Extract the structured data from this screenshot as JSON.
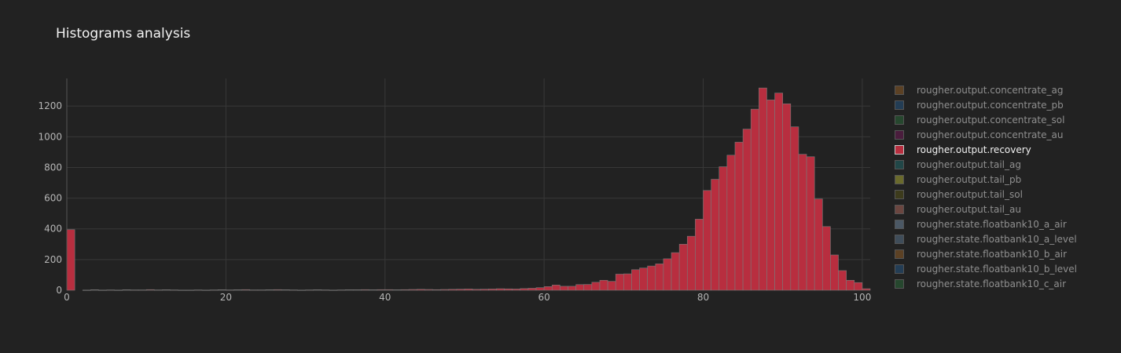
{
  "title": "Histograms analysis",
  "chart_data": {
    "type": "bar",
    "title": "Histograms analysis",
    "xlabel": "",
    "ylabel": "",
    "xlim": [
      0,
      101
    ],
    "ylim": [
      0,
      1380
    ],
    "x_ticks": [
      "0",
      "20",
      "40",
      "60",
      "80",
      "100"
    ],
    "y_ticks": [
      "0",
      "200",
      "400",
      "600",
      "800",
      "1000",
      "1200"
    ],
    "grid": true,
    "legend_position": "right",
    "bin_width": 1,
    "series": [
      {
        "name": "rougher.output.recovery",
        "color": "#b82e3f",
        "x": [
          0,
          1,
          2,
          3,
          4,
          5,
          6,
          7,
          8,
          9,
          10,
          11,
          12,
          13,
          14,
          15,
          16,
          17,
          18,
          19,
          20,
          21,
          22,
          23,
          24,
          25,
          26,
          27,
          28,
          29,
          30,
          31,
          32,
          33,
          34,
          35,
          36,
          37,
          38,
          39,
          40,
          41,
          42,
          43,
          44,
          45,
          46,
          47,
          48,
          49,
          50,
          51,
          52,
          53,
          54,
          55,
          56,
          57,
          58,
          59,
          60,
          61,
          62,
          63,
          64,
          65,
          66,
          67,
          68,
          69,
          70,
          71,
          72,
          73,
          74,
          75,
          76,
          77,
          78,
          79,
          80,
          81,
          82,
          83,
          84,
          85,
          86,
          87,
          88,
          89,
          90,
          91,
          92,
          93,
          94,
          95,
          96,
          97,
          98,
          99,
          100
        ],
        "values": [
          395,
          0,
          1,
          3,
          1,
          2,
          1,
          3,
          2,
          2,
          4,
          2,
          3,
          2,
          1,
          1,
          2,
          1,
          2,
          3,
          2,
          3,
          4,
          2,
          2,
          3,
          4,
          3,
          2,
          1,
          2,
          3,
          2,
          1,
          2,
          3,
          3,
          4,
          3,
          4,
          4,
          3,
          4,
          5,
          6,
          5,
          4,
          5,
          6,
          7,
          8,
          6,
          7,
          8,
          10,
          9,
          8,
          11,
          13,
          17,
          24,
          34,
          26,
          26,
          37,
          38,
          52,
          65,
          58,
          105,
          107,
          134,
          145,
          158,
          172,
          205,
          245,
          300,
          352,
          463,
          650,
          723,
          805,
          880,
          965,
          1050,
          1180,
          1318,
          1240,
          1285,
          1215,
          1065,
          886,
          870,
          595,
          415,
          230,
          128,
          65,
          50,
          10
        ]
      }
    ],
    "legend_entries": [
      {
        "name": "rougher.output.concentrate_ag",
        "color": "#5c4124",
        "active": false
      },
      {
        "name": "rougher.output.concentrate_pb",
        "color": "#233d55",
        "active": false
      },
      {
        "name": "rougher.output.concentrate_sol",
        "color": "#26472e",
        "active": false
      },
      {
        "name": "rougher.output.concentrate_au",
        "color": "#4a1d3d",
        "active": false
      },
      {
        "name": "rougher.output.recovery",
        "color": "#b82e3f",
        "active": true
      },
      {
        "name": "rougher.output.tail_ag",
        "color": "#214748",
        "active": false
      },
      {
        "name": "rougher.output.tail_pb",
        "color": "#6a6a2c",
        "active": false
      },
      {
        "name": "rougher.output.tail_sol",
        "color": "#3d3b1c",
        "active": false
      },
      {
        "name": "rougher.output.tail_au",
        "color": "#6b4640",
        "active": false
      },
      {
        "name": "rougher.state.floatbank10_a_air",
        "color": "#4b5865",
        "active": false
      },
      {
        "name": "rougher.state.floatbank10_a_level",
        "color": "#3f4d5a",
        "active": false
      },
      {
        "name": "rougher.state.floatbank10_b_air",
        "color": "#5c4124",
        "active": false
      },
      {
        "name": "rougher.state.floatbank10_b_level",
        "color": "#233d55",
        "active": false
      },
      {
        "name": "rougher.state.floatbank10_c_air",
        "color": "#26472e",
        "active": false
      }
    ]
  }
}
